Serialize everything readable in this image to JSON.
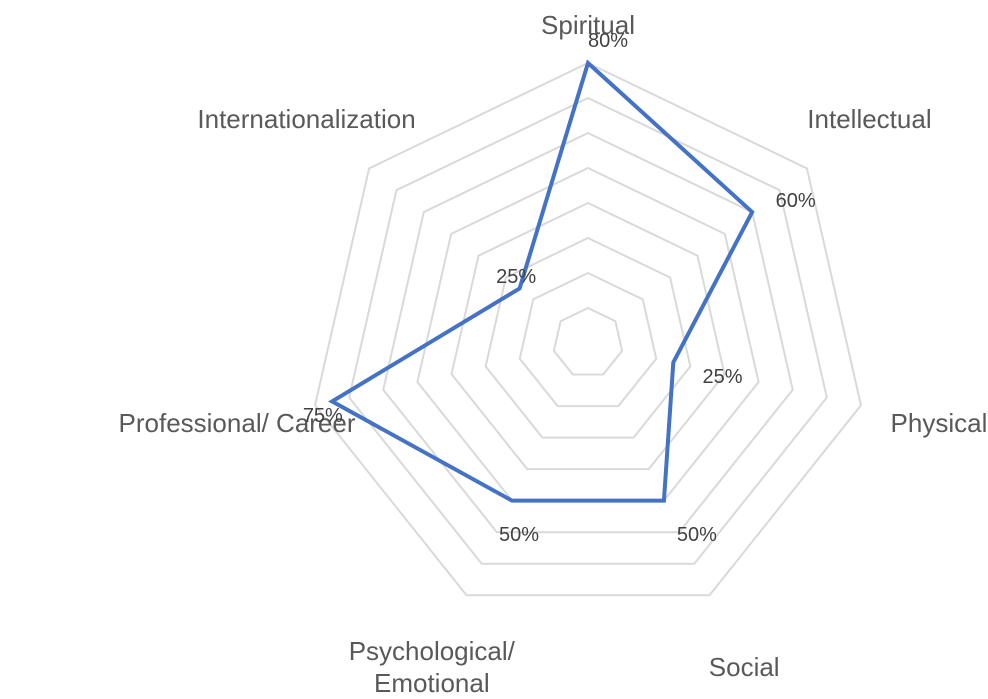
{
  "chart_data": {
    "type": "radar",
    "categories": [
      "Spiritual",
      "Intellectual",
      "Physical",
      "Social",
      "Psychological/ Emotional",
      "Professional/ Career",
      "Internationalization"
    ],
    "series": [
      {
        "color": "#4472c4",
        "values": [
          80,
          60,
          25,
          50,
          50,
          75,
          25
        ],
        "value_labels": [
          "80%",
          "60%",
          "25%",
          "50%",
          "50%",
          "75%",
          "25%"
        ]
      }
    ],
    "ylim": [
      0,
      80
    ],
    "yticks": [
      0,
      10,
      20,
      30,
      40,
      50,
      60,
      70,
      80
    ],
    "grid": true
  }
}
